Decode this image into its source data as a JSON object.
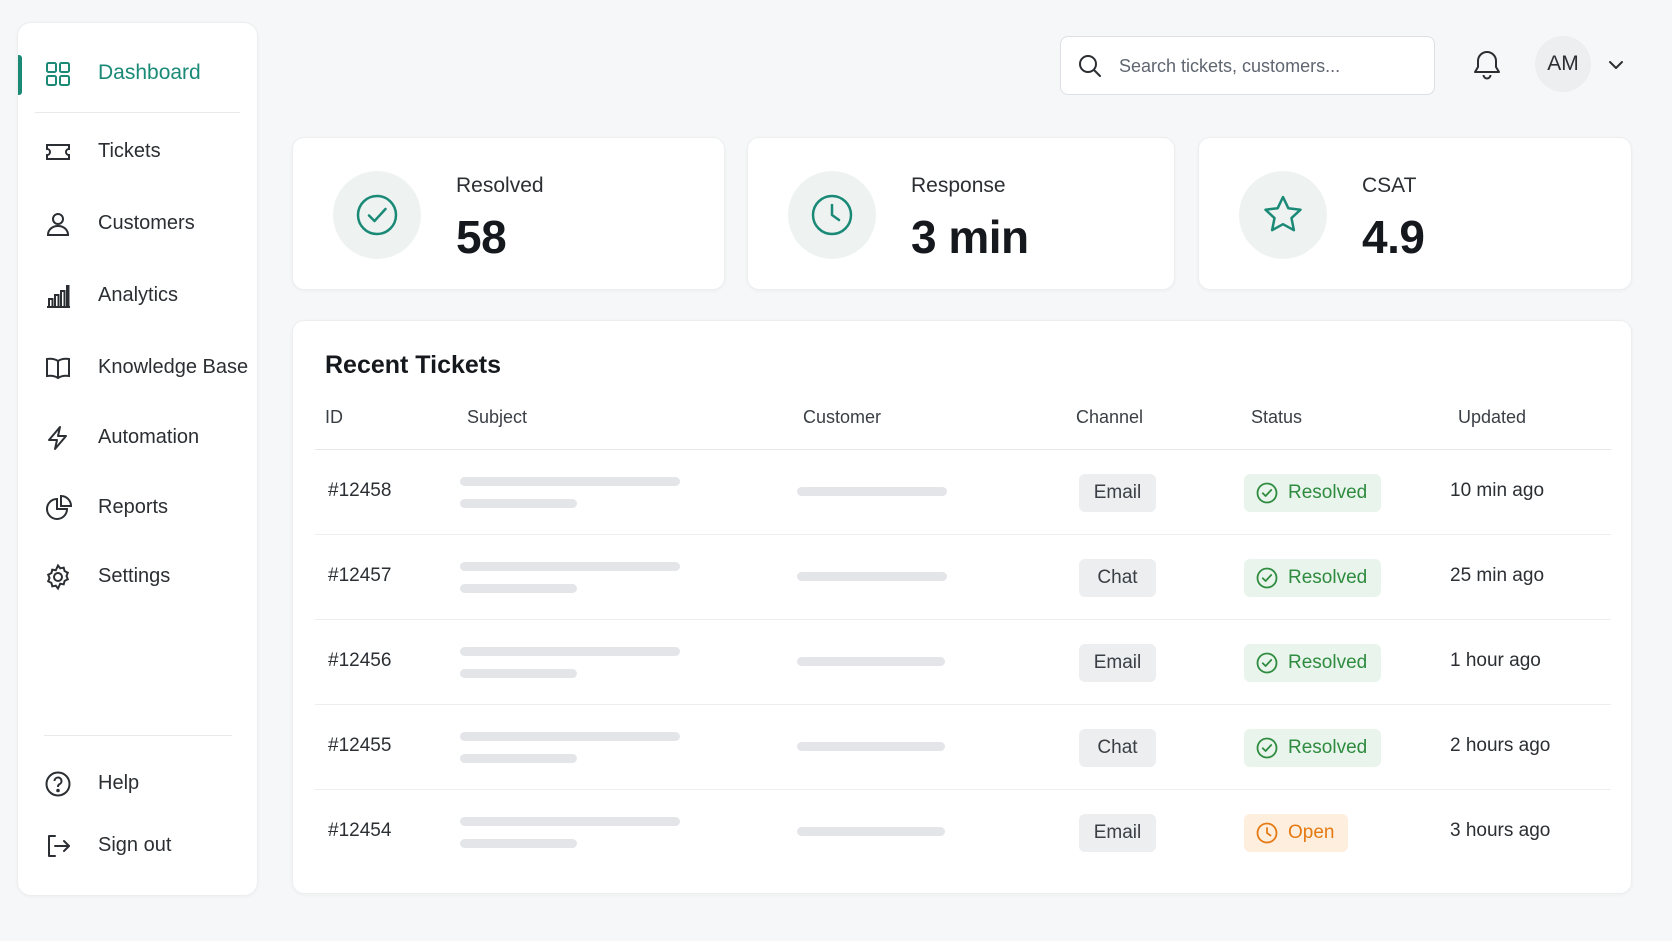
{
  "sidebar": {
    "items": [
      {
        "label": "Dashboard",
        "icon": "grid-icon",
        "active": true
      },
      {
        "label": "Tickets",
        "icon": "ticket-icon"
      },
      {
        "label": "Customers",
        "icon": "user-icon"
      },
      {
        "label": "Analytics",
        "icon": "bar-chart-icon"
      },
      {
        "label": "Knowledge Base",
        "icon": "book-icon"
      },
      {
        "label": "Automation",
        "icon": "lightning-icon"
      },
      {
        "label": "Reports",
        "icon": "pie-chart-icon"
      },
      {
        "label": "Settings",
        "icon": "gear-icon"
      }
    ],
    "footer": [
      {
        "label": "Help",
        "icon": "help-icon"
      },
      {
        "label": "Sign out",
        "icon": "sign-out-icon"
      }
    ]
  },
  "header": {
    "search_placeholder": "Search tickets, customers...",
    "avatar_initials": "AM"
  },
  "stats": [
    {
      "label": "Resolved",
      "value": "58",
      "icon": "check-circle-icon"
    },
    {
      "label": "Response",
      "value": "3 min",
      "icon": "clock-icon"
    },
    {
      "label": "CSAT",
      "value": "4.9",
      "icon": "star-icon"
    }
  ],
  "table": {
    "title": "Recent Tickets",
    "columns": [
      "ID",
      "Subject",
      "Customer",
      "Channel",
      "Status",
      "Updated"
    ],
    "rows": [
      {
        "id": "#12458",
        "channel": "Email",
        "status": "Resolved",
        "updated": "10 min ago"
      },
      {
        "id": "#12457",
        "channel": "Chat",
        "status": "Resolved",
        "updated": "25 min ago"
      },
      {
        "id": "#12456",
        "channel": "Email",
        "status": "Resolved",
        "updated": "1 hour ago"
      },
      {
        "id": "#12455",
        "channel": "Chat",
        "status": "Resolved",
        "updated": "2 hours ago"
      },
      {
        "id": "#12454",
        "channel": "Email",
        "status": "Open",
        "updated": "3 hours ago"
      }
    ]
  },
  "colors": {
    "accent": "#1a8a77",
    "resolved_bg": "#e9f5ec",
    "resolved_text": "#2e8b3f",
    "open_bg": "#fdeede",
    "open_text": "#e57a13"
  }
}
